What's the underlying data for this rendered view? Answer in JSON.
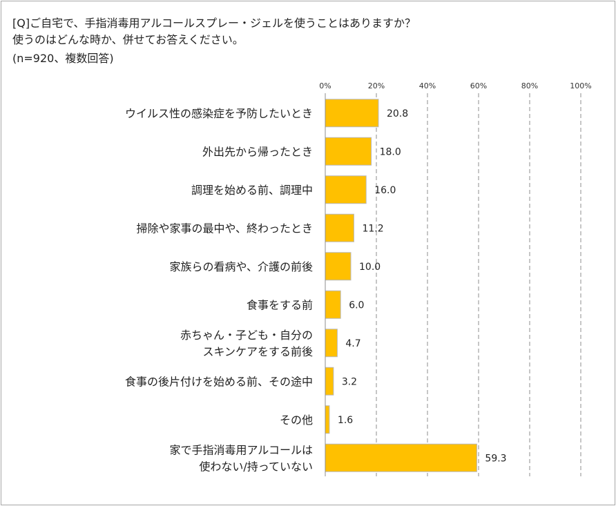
{
  "question": {
    "title": "[Q]ご自宅で、手指消毒用アルコールスプレー・ジェルを使うことはありますか？\n使うのはどんな時か、併せてお答えください。",
    "note": "(n=920、複数回答)"
  },
  "chart_data": {
    "type": "bar",
    "orientation": "horizontal",
    "xlim": [
      0,
      100
    ],
    "xticks": [
      "0%",
      "20%",
      "40%",
      "60%",
      "80%",
      "100%"
    ],
    "grid": "vertical dashed",
    "categories": [
      "ウイルス性の感染症を予防したいとき",
      "外出先から帰ったとき",
      "調理を始める前、調理中",
      "掃除や家事の最中や、終わったとき",
      "家族らの看病や、介護の前後",
      "食事をする前",
      "赤ちゃん・子ども・自分の\nスキンケアをする前後",
      "食事の後片付けを始める前、その途中",
      "その他",
      "家で手指消毒用アルコールは\n使わない/持っていない"
    ],
    "values": [
      20.8,
      18.0,
      16.0,
      11.2,
      10.0,
      6.0,
      4.7,
      3.2,
      1.6,
      59.3
    ],
    "value_labels": [
      "20.8",
      "18.0",
      "16.0",
      "11.2",
      "10.0",
      "6.0",
      "4.7",
      "3.2",
      "1.6",
      "59.3"
    ],
    "bar_color": "#ffc000"
  }
}
